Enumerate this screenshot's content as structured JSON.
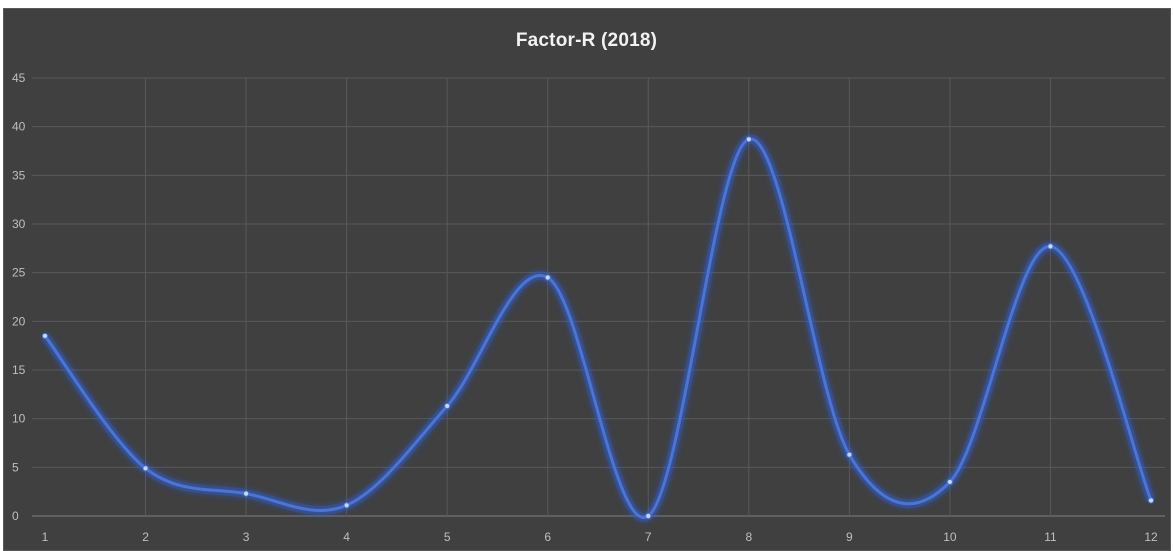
{
  "chart_data": {
    "type": "line",
    "title": "Factor-R (2018)",
    "xlabel": "",
    "ylabel": "",
    "x": [
      1,
      2,
      3,
      4,
      5,
      6,
      7,
      8,
      9,
      10,
      11,
      12
    ],
    "series": [
      {
        "values": [
          18.5,
          4.9,
          2.3,
          1.1,
          11.3,
          24.5,
          0,
          38.7,
          6.3,
          3.5,
          27.7,
          1.6
        ]
      }
    ],
    "xticks": [
      "1",
      "2",
      "3",
      "4",
      "5",
      "6",
      "7",
      "8",
      "9",
      "10",
      "11",
      "12"
    ],
    "yticks": [
      "0",
      "5",
      "10",
      "15",
      "20",
      "25",
      "30",
      "35",
      "40",
      "45"
    ],
    "ylim": [
      0,
      45
    ],
    "smooth": true,
    "grid": true,
    "legend": "none",
    "colors": {
      "background": "#404040",
      "gridline": "#595959",
      "line": "#4a74d6",
      "glow": "#2e5fd9",
      "marker": "#c9d6f5",
      "title": "#f2f2f2",
      "tick_label": "#bfbfbf"
    }
  }
}
